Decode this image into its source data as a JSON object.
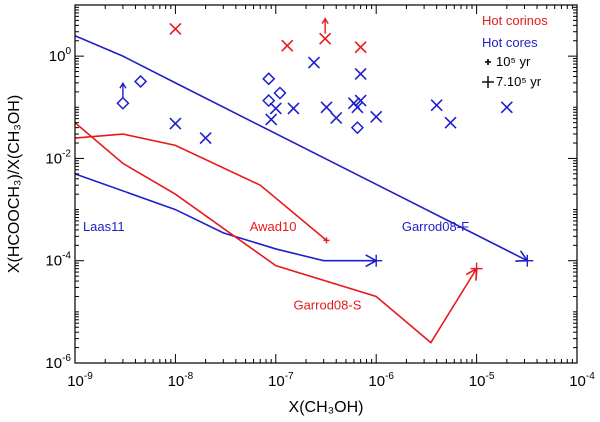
{
  "chart_data": {
    "type": "scatter",
    "x_scale": "log",
    "y_scale": "log",
    "xlim": [
      1e-09,
      0.0001
    ],
    "ylim": [
      1e-06,
      10
    ],
    "xlabel": "X(CH₃OH)",
    "ylabel": "X(HCOOCH₃)/X(CH₃OH)",
    "x_ticks": [
      {
        "value": 1e-09,
        "base": "10",
        "exp": "-9"
      },
      {
        "value": 1e-08,
        "base": "10",
        "exp": "-8"
      },
      {
        "value": 1e-07,
        "base": "10",
        "exp": "-7"
      },
      {
        "value": 1e-06,
        "base": "10",
        "exp": "-6"
      },
      {
        "value": 1e-05,
        "base": "10",
        "exp": "-5"
      },
      {
        "value": 0.0001,
        "base": "10",
        "exp": "-4"
      }
    ],
    "y_ticks": [
      {
        "value": 1e-06,
        "base": "10",
        "exp": "-6"
      },
      {
        "value": 0.0001,
        "base": "10",
        "exp": "-4"
      },
      {
        "value": 0.01,
        "base": "10",
        "exp": "-2"
      },
      {
        "value": 1,
        "base": "10",
        "exp": "0"
      }
    ],
    "legend": {
      "position": "top-right",
      "entries": [
        {
          "label": "Hot corinos",
          "color": "#e8191c"
        },
        {
          "label": "Hot cores",
          "color": "#1f1fc8"
        },
        {
          "label": "10⁵ yr",
          "marker": "small-plus",
          "color": "#000000"
        },
        {
          "label": "7.10⁵ yr",
          "marker": "large-plus",
          "color": "#000000"
        }
      ]
    },
    "series": [
      {
        "name": "Hot corinos",
        "color": "#e8191c",
        "marker": "x",
        "points": [
          {
            "x": 1e-08,
            "y": 3.4
          },
          {
            "x": 1.3e-07,
            "y": 1.6
          },
          {
            "x": 3.1e-07,
            "y": 2.2,
            "lower_limit": true
          },
          {
            "x": 7e-07,
            "y": 1.5
          }
        ]
      },
      {
        "name": "Hot cores",
        "color": "#1f1fc8",
        "marker": "x",
        "points": [
          {
            "x": 1e-08,
            "y": 0.048
          },
          {
            "x": 2e-08,
            "y": 0.025
          },
          {
            "x": 9e-08,
            "y": 0.058
          },
          {
            "x": 1e-07,
            "y": 0.095
          },
          {
            "x": 1.5e-07,
            "y": 0.095
          },
          {
            "x": 2.4e-07,
            "y": 0.75
          },
          {
            "x": 3.2e-07,
            "y": 0.1
          },
          {
            "x": 4e-07,
            "y": 0.062
          },
          {
            "x": 6e-07,
            "y": 0.12
          },
          {
            "x": 6.5e-07,
            "y": 0.1
          },
          {
            "x": 7e-07,
            "y": 0.45
          },
          {
            "x": 7e-07,
            "y": 0.135
          },
          {
            "x": 1e-06,
            "y": 0.065
          },
          {
            "x": 4e-06,
            "y": 0.11
          },
          {
            "x": 5.5e-06,
            "y": 0.05
          },
          {
            "x": 2e-05,
            "y": 0.1
          }
        ]
      },
      {
        "name": "Hot cores (diamonds)",
        "color": "#1f1fc8",
        "marker": "diamond",
        "points": [
          {
            "x": 3e-09,
            "y": 0.12,
            "lower_limit": true
          },
          {
            "x": 4.5e-09,
            "y": 0.32
          },
          {
            "x": 8.5e-08,
            "y": 0.36
          },
          {
            "x": 8.5e-08,
            "y": 0.135
          },
          {
            "x": 1.1e-07,
            "y": 0.19
          },
          {
            "x": 6.5e-07,
            "y": 0.04
          }
        ]
      }
    ],
    "models": [
      {
        "name": "Garrod08-F",
        "color": "#1f1fc8",
        "points": [
          [
            1e-09,
            2.5
          ],
          [
            3e-09,
            1.0
          ],
          [
            1e-08,
            0.3
          ],
          [
            3.2e-05,
            0.0001
          ]
        ],
        "end_marker": "large-plus",
        "arrow": true,
        "label_anchor": [
          1.8e-06,
          0.00048
        ]
      },
      {
        "name": "Laas11",
        "color": "#1f1fc8",
        "points": [
          [
            1e-09,
            0.005
          ],
          [
            1e-08,
            0.001
          ],
          [
            3e-08,
            0.00035
          ],
          [
            1e-07,
            0.00017
          ],
          [
            3e-07,
            0.0001
          ],
          [
            1e-06,
            0.0001
          ]
        ],
        "end_marker": "large-plus",
        "arrow": true,
        "label_anchor": [
          1.2e-09,
          0.00048
        ]
      },
      {
        "name": "Awad10",
        "color": "#e8191c",
        "points": [
          [
            1e-09,
            0.025
          ],
          [
            3e-09,
            0.03
          ],
          [
            1e-08,
            0.018
          ],
          [
            7e-08,
            0.003
          ],
          [
            3.2e-07,
            0.00025
          ]
        ],
        "end_marker": "small-plus",
        "arrow": false,
        "label_anchor": [
          5.5e-08,
          0.00048
        ]
      },
      {
        "name": "Garrod08-S",
        "color": "#e8191c",
        "points": [
          [
            1e-09,
            0.05
          ],
          [
            3e-09,
            0.008
          ],
          [
            1e-08,
            0.002
          ],
          [
            1e-07,
            8e-05
          ],
          [
            1e-06,
            2e-05
          ],
          [
            3.5e-06,
            2.5e-06
          ],
          [
            1e-05,
            7e-05
          ]
        ],
        "end_marker": "large-plus",
        "arrow": true,
        "label_anchor": [
          1.5e-07,
          1.4e-05
        ]
      }
    ]
  }
}
